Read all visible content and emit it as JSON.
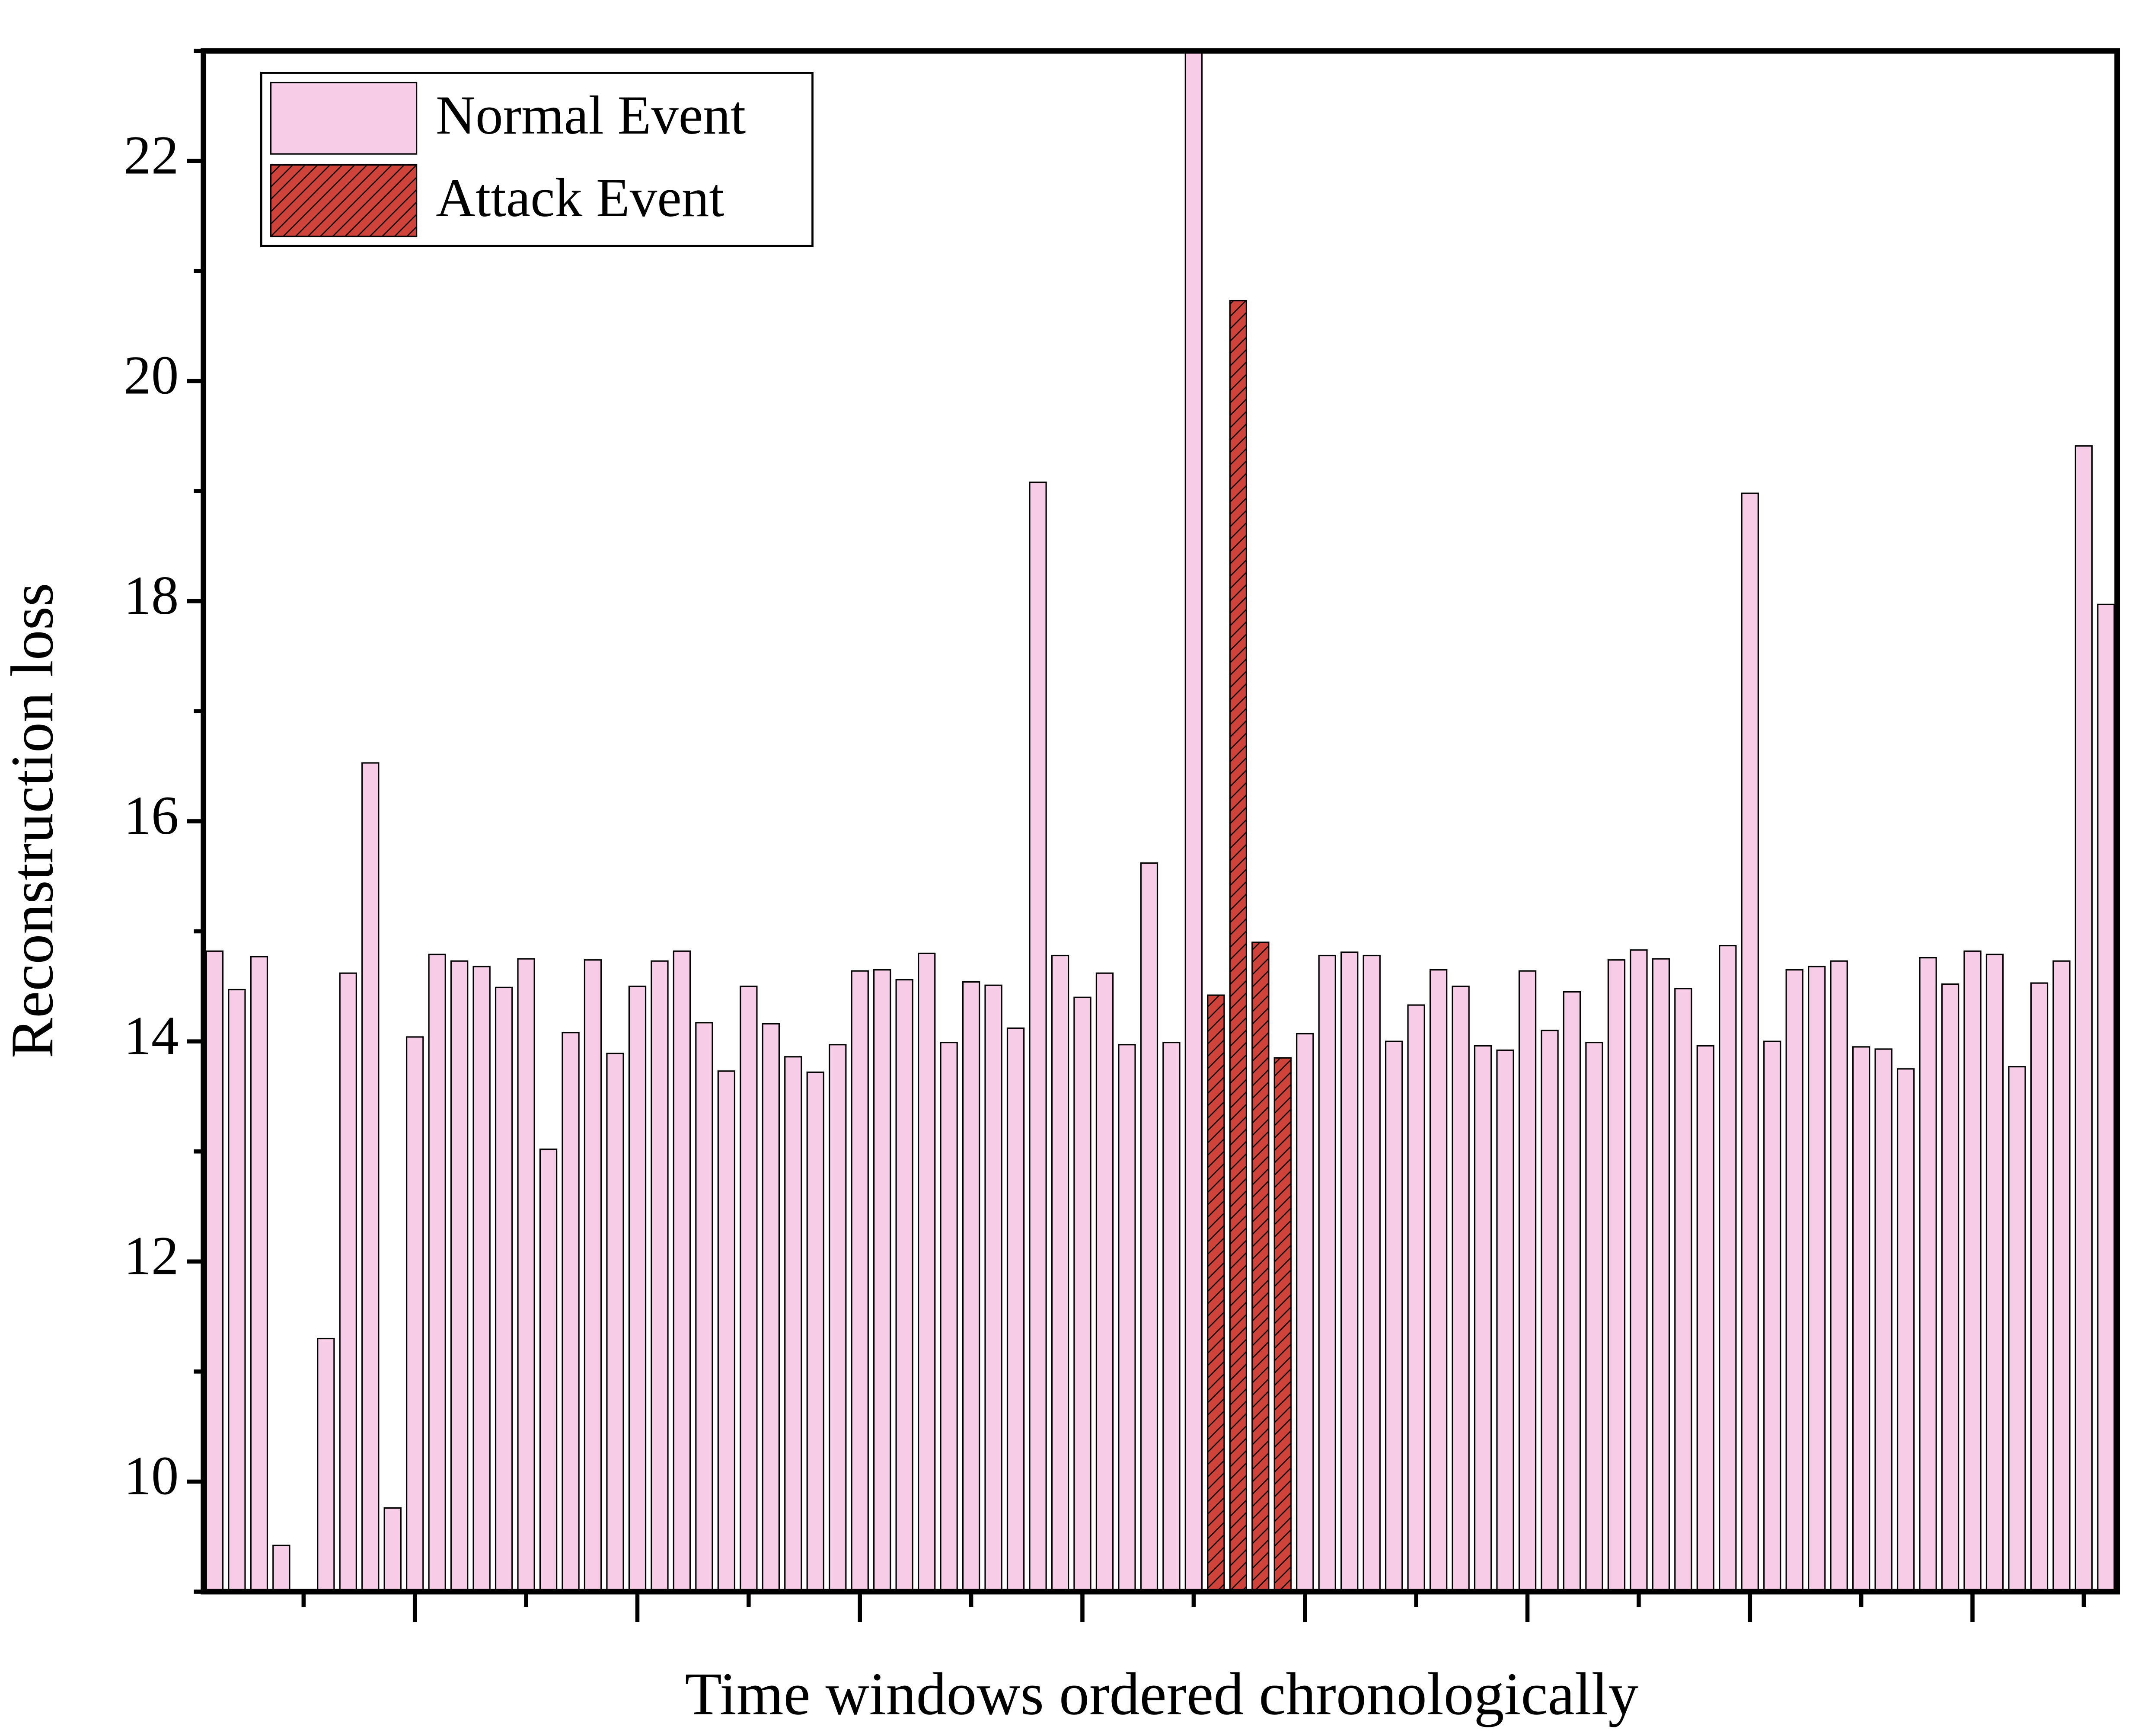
{
  "chart_data": {
    "type": "bar",
    "x_label": "Time windows ordered chronologically",
    "y_label": "Reconstruction loss",
    "categories": [
      null,
      null,
      null,
      null,
      null,
      null,
      null,
      null,
      null,
      null,
      null,
      null,
      null,
      null,
      null,
      null,
      null,
      null,
      null,
      null,
      null,
      null,
      null,
      null,
      null,
      null,
      null,
      null,
      null,
      null,
      null,
      null,
      null,
      null,
      null,
      null,
      null,
      null,
      null,
      null,
      null,
      null,
      null,
      null,
      null,
      null,
      null,
      null,
      null,
      null,
      null,
      null,
      null,
      null,
      null,
      null,
      null,
      null,
      null,
      null,
      null,
      null,
      null,
      null,
      null,
      null,
      null,
      null,
      null,
      null,
      null,
      null,
      null,
      null,
      null,
      null,
      null,
      null,
      null,
      null,
      null,
      null,
      null,
      null,
      null,
      null
    ],
    "series": [
      {
        "name": "Normal Event",
        "color": "#f7cce6",
        "hatch": false,
        "values": [
          14.82,
          14.47,
          14.77,
          9.42,
          null,
          11.3,
          14.62,
          16.53,
          9.76,
          14.04,
          14.79,
          14.73,
          14.68,
          14.49,
          14.75,
          13.02,
          14.08,
          14.74,
          13.89,
          14.5,
          14.73,
          14.82,
          14.17,
          13.73,
          14.5,
          14.16,
          13.86,
          13.72,
          13.97,
          14.64,
          14.65,
          14.56,
          14.8,
          13.99,
          14.54,
          14.51,
          14.12,
          19.08,
          14.78,
          14.4,
          14.62,
          13.97,
          15.62,
          13.99,
          23,
          null,
          null,
          null,
          null,
          14.07,
          14.78,
          14.81,
          14.78,
          14.0,
          14.33,
          14.65,
          14.5,
          13.96,
          13.92,
          14.64,
          14.1,
          14.45,
          13.99,
          14.74,
          14.83,
          14.75,
          14.48,
          13.96,
          14.87,
          18.98,
          14.0,
          14.65,
          14.68,
          14.73,
          13.95,
          13.93,
          13.75,
          14.76,
          14.52,
          14.82,
          14.79,
          13.77,
          14.53,
          14.73,
          19.41,
          17.97
        ]
      },
      {
        "name": "Attack Event",
        "color": "#d0433b",
        "hatch": true,
        "values": [
          null,
          null,
          null,
          null,
          null,
          null,
          null,
          null,
          null,
          null,
          null,
          null,
          null,
          null,
          null,
          null,
          null,
          null,
          null,
          null,
          null,
          null,
          null,
          null,
          null,
          null,
          null,
          null,
          null,
          null,
          null,
          null,
          null,
          null,
          null,
          null,
          null,
          null,
          null,
          null,
          null,
          null,
          null,
          null,
          null,
          14.42,
          20.73,
          14.9,
          13.85,
          null,
          null,
          null,
          null,
          null,
          null,
          null,
          null,
          null,
          null,
          null,
          null,
          null,
          null,
          null,
          null,
          null,
          null,
          null,
          null,
          null,
          null,
          null,
          null,
          null,
          null,
          null,
          null,
          null,
          null,
          null,
          null,
          null,
          null,
          null,
          null,
          null
        ]
      }
    ],
    "ylim": [
      9,
      23
    ],
    "yticks": [
      10,
      12,
      14,
      16,
      18,
      20,
      22
    ],
    "yminorticks": [
      9,
      11,
      13,
      15,
      17,
      19,
      21,
      23
    ],
    "legend": "upper left",
    "grid": false
  }
}
